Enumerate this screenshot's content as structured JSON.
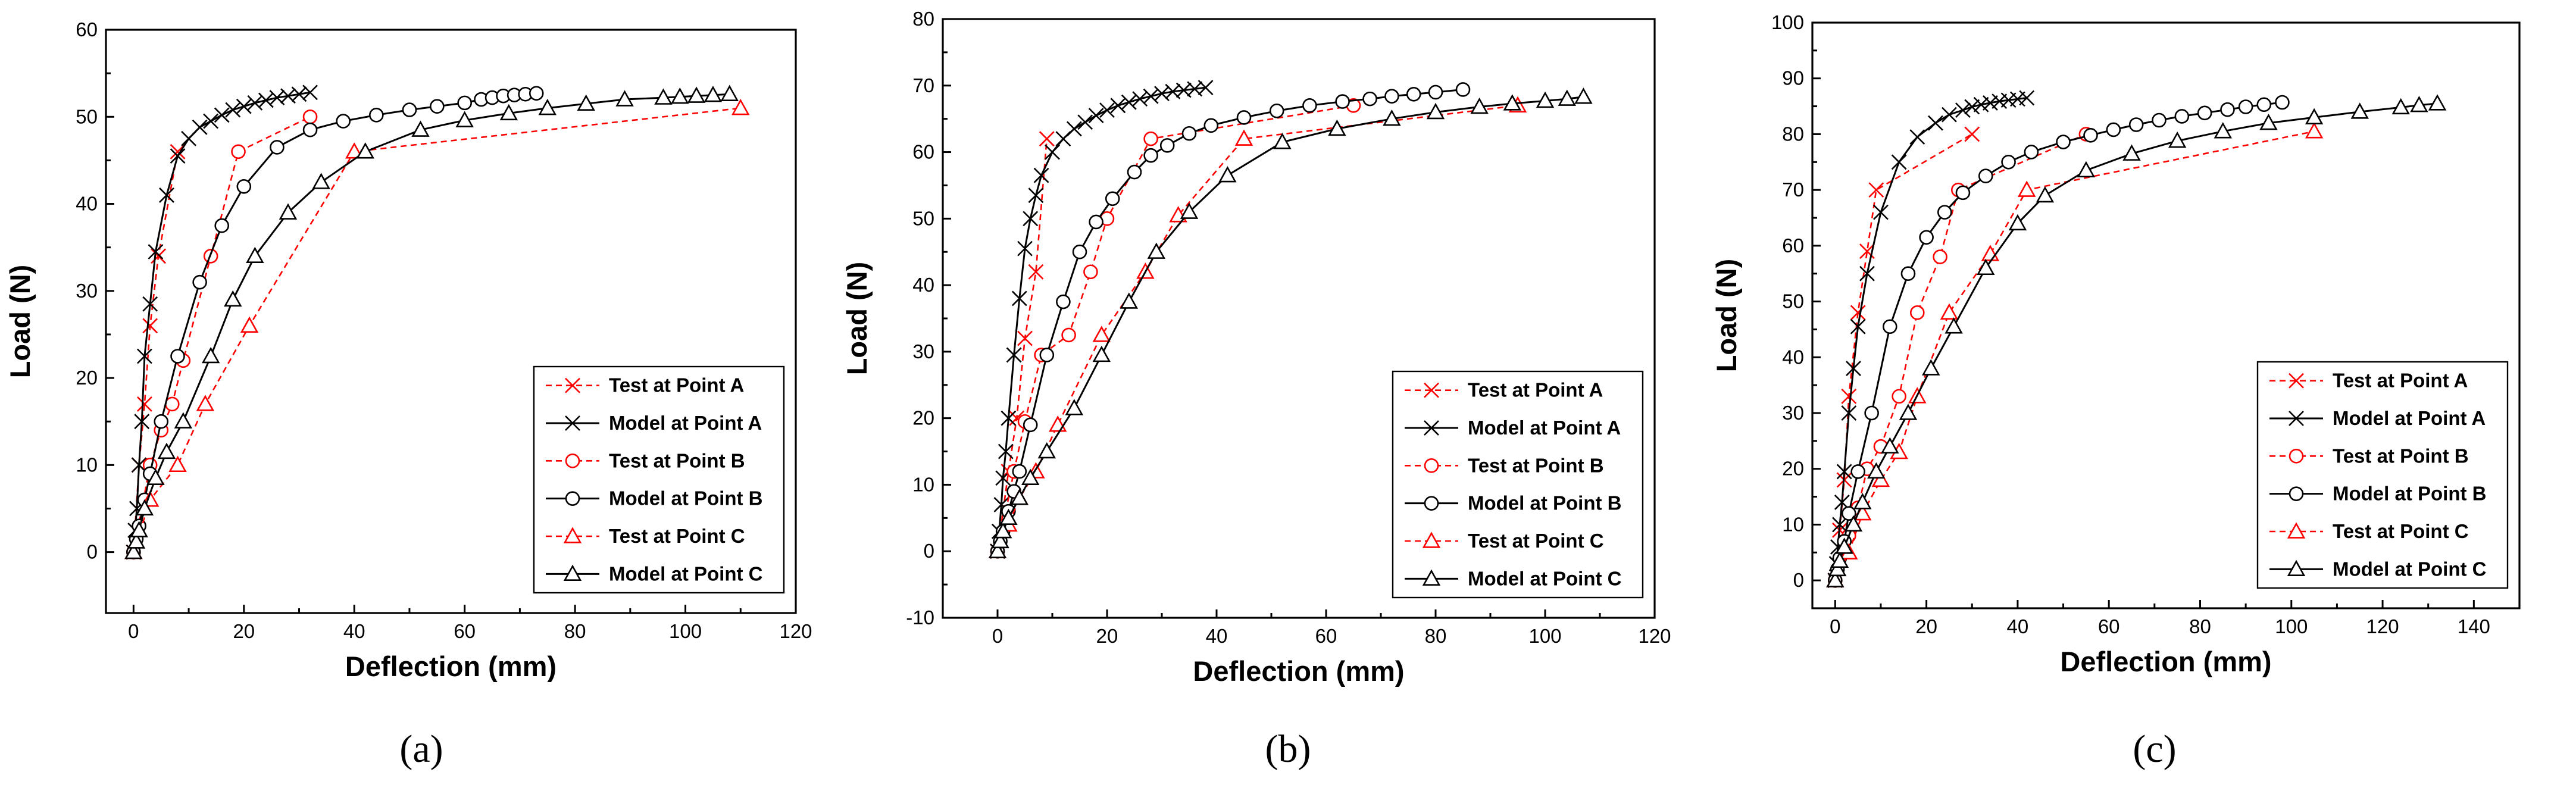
{
  "figure": {
    "panels": [
      "(a)",
      "(b)",
      "(c)"
    ]
  },
  "chart_data": [
    {
      "type": "line",
      "panel_label": "(a)",
      "xlabel": "Deflection (mm)",
      "ylabel": "Load (N)",
      "xlim": [
        -5,
        120
      ],
      "ylim": [
        -7,
        60
      ],
      "xticks": [
        0,
        20,
        40,
        60,
        80,
        100,
        120
      ],
      "yticks": [
        0,
        10,
        20,
        30,
        40,
        50,
        60
      ],
      "legend_position": "bottom-right",
      "series": [
        {
          "name": "Test at Point A",
          "style": "test",
          "marker": "x",
          "color": "#ff0000",
          "x": [
            0,
            1,
            2,
            3,
            4.5,
            8
          ],
          "y": [
            0,
            10,
            17,
            26,
            34,
            46
          ]
        },
        {
          "name": "Model at Point A",
          "style": "model",
          "marker": "x",
          "color": "#000000",
          "x": [
            0,
            0.3,
            0.6,
            1,
            1.5,
            2,
            3,
            4,
            6,
            8,
            10,
            12,
            14,
            16,
            18,
            20,
            22,
            24,
            26,
            28,
            30,
            32
          ],
          "y": [
            0,
            2.5,
            5,
            10,
            15,
            22.5,
            28.5,
            34.5,
            41,
            45.5,
            47.5,
            48.8,
            49.5,
            50.2,
            50.8,
            51.2,
            51.6,
            51.9,
            52.2,
            52.4,
            52.6,
            52.8
          ]
        },
        {
          "name": "Test at Point B",
          "style": "test",
          "marker": "o",
          "color": "#ff0000",
          "x": [
            0,
            3,
            5,
            7,
            9,
            14,
            19,
            32
          ],
          "y": [
            0,
            10,
            14,
            17,
            22,
            34,
            46,
            50
          ]
        },
        {
          "name": "Model at Point B",
          "style": "model",
          "marker": "o",
          "color": "#000000",
          "x": [
            0,
            0.5,
            1,
            2,
            3,
            5,
            8,
            12,
            16,
            20,
            26,
            32,
            38,
            44,
            50,
            55,
            60,
            63,
            65,
            67,
            69,
            71,
            73
          ],
          "y": [
            0,
            1.5,
            3,
            6,
            9,
            15,
            22.5,
            31,
            37.5,
            42,
            46.5,
            48.5,
            49.5,
            50.2,
            50.8,
            51.2,
            51.6,
            52,
            52.2,
            52.4,
            52.5,
            52.6,
            52.7
          ]
        },
        {
          "name": "Test at Point C",
          "style": "test",
          "marker": "triangle",
          "color": "#ff0000",
          "x": [
            0,
            3,
            8,
            13,
            21,
            40,
            110
          ],
          "y": [
            0,
            6,
            10,
            17,
            26,
            46,
            51
          ]
        },
        {
          "name": "Model at Point C",
          "style": "model",
          "marker": "triangle",
          "color": "#000000",
          "x": [
            0,
            0.5,
            1,
            2,
            4,
            6,
            9,
            14,
            18,
            22,
            28,
            34,
            42,
            52,
            60,
            68,
            75,
            82,
            89,
            96,
            99,
            102,
            105,
            108
          ],
          "y": [
            0,
            1.2,
            2.5,
            5,
            8.5,
            11.5,
            15,
            22.5,
            29,
            34,
            39,
            42.5,
            46,
            48.5,
            49.6,
            50.4,
            51,
            51.5,
            52,
            52.2,
            52.3,
            52.4,
            52.5,
            52.6
          ]
        }
      ]
    },
    {
      "type": "line",
      "panel_label": "(b)",
      "xlabel": "Deflection (mm)",
      "ylabel": "Load (N)",
      "xlim": [
        -10,
        120
      ],
      "ylim": [
        -10,
        80
      ],
      "xticks": [
        0,
        20,
        40,
        60,
        80,
        100,
        120
      ],
      "yticks": [
        -10,
        0,
        10,
        20,
        30,
        40,
        50,
        60,
        70,
        80
      ],
      "legend_position": "bottom-right",
      "series": [
        {
          "name": "Test at Point A",
          "style": "test",
          "marker": "x",
          "color": "#ff0000",
          "x": [
            0,
            2,
            3.5,
            5,
            7,
            9
          ],
          "y": [
            0,
            12,
            20,
            32,
            42,
            62
          ]
        },
        {
          "name": "Model at Point A",
          "style": "model",
          "marker": "x",
          "color": "#000000",
          "x": [
            0,
            0.3,
            0.7,
            1,
            1.5,
            2,
            3,
            4,
            5,
            6,
            7,
            8,
            10,
            12,
            14,
            16,
            18,
            20,
            22,
            24,
            26,
            28,
            30,
            32,
            34,
            36,
            38
          ],
          "y": [
            0,
            3,
            7,
            11,
            15,
            20,
            29.5,
            38,
            45.5,
            50,
            53.5,
            56.5,
            60,
            62,
            63.5,
            64.5,
            65.5,
            66.3,
            67,
            67.5,
            68,
            68.4,
            68.8,
            69.1,
            69.3,
            69.5,
            69.7
          ]
        },
        {
          "name": "Test at Point B",
          "style": "test",
          "marker": "o",
          "color": "#ff0000",
          "x": [
            0,
            3,
            5,
            8,
            13,
            17,
            20,
            28,
            65
          ],
          "y": [
            0,
            12,
            19.5,
            29.5,
            32.5,
            42,
            50,
            62,
            67
          ]
        },
        {
          "name": "Model at Point B",
          "style": "model",
          "marker": "o",
          "color": "#000000",
          "x": [
            0,
            0.5,
            1,
            2,
            3,
            4,
            6,
            9,
            12,
            15,
            18,
            21,
            25,
            28,
            31,
            35,
            39,
            45,
            51,
            57,
            63,
            68,
            72,
            76,
            80,
            85
          ],
          "y": [
            0,
            1.5,
            3,
            6,
            9,
            12,
            19,
            29.5,
            37.5,
            45,
            49.5,
            53,
            57,
            59.5,
            61,
            62.8,
            64,
            65.2,
            66.2,
            67,
            67.6,
            68,
            68.4,
            68.7,
            69,
            69.4
          ]
        },
        {
          "name": "Test at Point C",
          "style": "test",
          "marker": "triangle",
          "color": "#ff0000",
          "x": [
            0,
            2,
            4,
            7,
            11,
            19,
            27,
            33,
            45,
            95
          ],
          "y": [
            0,
            4,
            8,
            12,
            19,
            32.5,
            42,
            50.5,
            62,
            67
          ]
        },
        {
          "name": "Model at Point C",
          "style": "model",
          "marker": "triangle",
          "color": "#000000",
          "x": [
            0,
            0.5,
            1,
            2,
            4,
            6,
            9,
            14,
            19,
            24,
            29,
            35,
            42,
            52,
            62,
            72,
            80,
            88,
            94,
            100,
            104,
            107
          ],
          "y": [
            0,
            1.5,
            3,
            5,
            8,
            11,
            15,
            21.5,
            29.5,
            37.5,
            45,
            51,
            56.5,
            61.5,
            63.5,
            65,
            66,
            66.8,
            67.3,
            67.7,
            68,
            68.3
          ]
        }
      ]
    },
    {
      "type": "line",
      "panel_label": "(c)",
      "xlabel": "Deflection (mm)",
      "ylabel": "Load (N)",
      "xlim": [
        -5,
        150
      ],
      "ylim": [
        -5,
        100
      ],
      "xticks": [
        0,
        20,
        40,
        60,
        80,
        100,
        120,
        140
      ],
      "yticks": [
        0,
        10,
        20,
        30,
        40,
        50,
        60,
        70,
        80,
        90,
        100
      ],
      "legend_position": "bottom-right",
      "series": [
        {
          "name": "Test at Point A",
          "style": "test",
          "marker": "x",
          "color": "#ff0000",
          "x": [
            0,
            1,
            2,
            3,
            5,
            7,
            9,
            30
          ],
          "y": [
            0,
            9,
            18,
            33,
            48,
            59,
            70,
            80
          ]
        },
        {
          "name": "Model at Point A",
          "style": "model",
          "marker": "x",
          "color": "#000000",
          "x": [
            0,
            0.3,
            0.6,
            1,
            1.5,
            2,
            3,
            4,
            5,
            7,
            10,
            14,
            18,
            22,
            25,
            28,
            30,
            32,
            34,
            36,
            38,
            40,
            42
          ],
          "y": [
            0,
            3,
            6,
            10,
            14,
            19.5,
            30,
            38,
            45.5,
            55,
            66,
            75,
            79.5,
            82,
            83.5,
            84.3,
            84.9,
            85.3,
            85.6,
            85.9,
            86.1,
            86.3,
            86.5
          ]
        },
        {
          "name": "Test at Point B",
          "style": "test",
          "marker": "o",
          "color": "#ff0000",
          "x": [
            0,
            3,
            5,
            7,
            10,
            14,
            18,
            23,
            27,
            55
          ],
          "y": [
            0,
            8,
            13,
            20,
            24,
            33,
            48,
            58,
            70,
            80
          ]
        },
        {
          "name": "Model at Point B",
          "style": "model",
          "marker": "o",
          "color": "#000000",
          "x": [
            0,
            0.5,
            1,
            2,
            3,
            5,
            8,
            12,
            16,
            20,
            24,
            28,
            33,
            38,
            43,
            50,
            56,
            61,
            66,
            71,
            76,
            81,
            86,
            90,
            94,
            98
          ],
          "y": [
            0,
            2,
            4,
            7,
            12,
            19.5,
            30,
            45.5,
            55,
            61.5,
            66,
            69.5,
            72.5,
            75,
            76.8,
            78.6,
            79.8,
            80.8,
            81.7,
            82.5,
            83.2,
            83.8,
            84.4,
            84.9,
            85.3,
            85.7
          ]
        },
        {
          "name": "Test at Point C",
          "style": "test",
          "marker": "triangle",
          "color": "#ff0000",
          "x": [
            0,
            3,
            6,
            10,
            14,
            18,
            25,
            34,
            42,
            105
          ],
          "y": [
            0,
            5,
            12,
            18,
            23,
            33,
            48,
            58.5,
            70,
            80.5
          ]
        },
        {
          "name": "Model at Point C",
          "style": "model",
          "marker": "triangle",
          "color": "#000000",
          "x": [
            0,
            0.5,
            1,
            2,
            4,
            6,
            9,
            12,
            16,
            21,
            26,
            33,
            40,
            46,
            55,
            65,
            75,
            85,
            95,
            105,
            115,
            124,
            128,
            132
          ],
          "y": [
            0,
            2,
            3.5,
            6,
            10,
            14,
            19.5,
            24,
            30,
            38,
            45.5,
            56,
            64,
            69,
            73.5,
            76.5,
            78.8,
            80.5,
            82,
            83,
            84,
            84.8,
            85.2,
            85.5
          ]
        }
      ]
    }
  ]
}
